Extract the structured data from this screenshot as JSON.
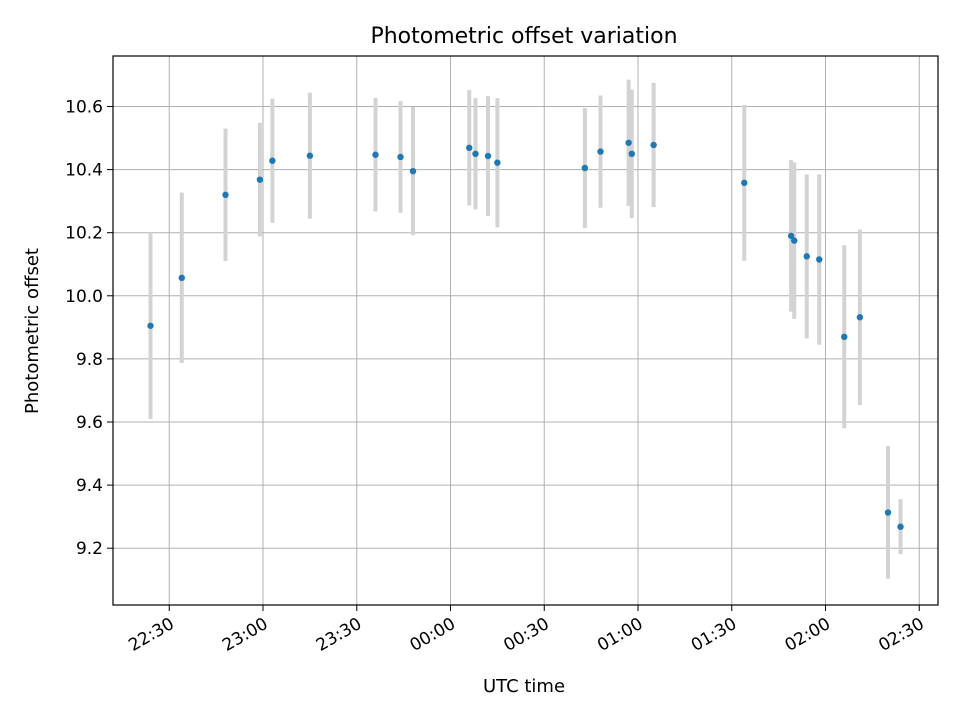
{
  "chart_data": {
    "type": "scatter",
    "title": "Photometric offset variation",
    "xlabel": "UTC time",
    "ylabel": "Photometric offset",
    "grid": true,
    "x_ticks": [
      "22:30",
      "23:00",
      "23:30",
      "00:00",
      "00:30",
      "01:00",
      "01:30",
      "02:00",
      "02:30"
    ],
    "y_ticks": [
      "9.2",
      "9.4",
      "9.6",
      "9.8",
      "10.0",
      "10.2",
      "10.4",
      "10.6"
    ],
    "xlim": [
      "22:12",
      "02:36"
    ],
    "ylim": [
      9.02,
      10.76
    ],
    "series": [
      {
        "marker_color": "#1f77b4",
        "error_color": "#d3d3d3",
        "points": [
          {
            "x": "22:24",
            "y": 9.905,
            "err": 0.295
          },
          {
            "x": "22:34",
            "y": 10.057,
            "err": 0.27
          },
          {
            "x": "22:48",
            "y": 10.32,
            "err": 0.21
          },
          {
            "x": "22:59",
            "y": 10.368,
            "err": 0.18
          },
          {
            "x": "23:03",
            "y": 10.428,
            "err": 0.197
          },
          {
            "x": "23:15",
            "y": 10.444,
            "err": 0.2
          },
          {
            "x": "23:36",
            "y": 10.447,
            "err": 0.18
          },
          {
            "x": "23:44",
            "y": 10.44,
            "err": 0.177
          },
          {
            "x": "23:48",
            "y": 10.395,
            "err": 0.203
          },
          {
            "x": "00:06",
            "y": 10.469,
            "err": 0.183
          },
          {
            "x": "00:08",
            "y": 10.45,
            "err": 0.176
          },
          {
            "x": "00:12",
            "y": 10.443,
            "err": 0.19
          },
          {
            "x": "00:15",
            "y": 10.422,
            "err": 0.205
          },
          {
            "x": "00:43",
            "y": 10.405,
            "err": 0.19
          },
          {
            "x": "00:48",
            "y": 10.457,
            "err": 0.178
          },
          {
            "x": "00:57",
            "y": 10.485,
            "err": 0.2
          },
          {
            "x": "00:58",
            "y": 10.45,
            "err": 0.204
          },
          {
            "x": "01:05",
            "y": 10.478,
            "err": 0.197
          },
          {
            "x": "01:34",
            "y": 10.358,
            "err": 0.247
          },
          {
            "x": "01:49",
            "y": 10.19,
            "err": 0.24
          },
          {
            "x": "01:50",
            "y": 10.175,
            "err": 0.248
          },
          {
            "x": "01:54",
            "y": 10.125,
            "err": 0.26
          },
          {
            "x": "01:58",
            "y": 10.115,
            "err": 0.27
          },
          {
            "x": "02:06",
            "y": 9.87,
            "err": 0.29
          },
          {
            "x": "02:11",
            "y": 9.932,
            "err": 0.278
          },
          {
            "x": "02:20",
            "y": 9.313,
            "err": 0.21
          },
          {
            "x": "02:24",
            "y": 9.268,
            "err": 0.087
          }
        ]
      }
    ]
  }
}
